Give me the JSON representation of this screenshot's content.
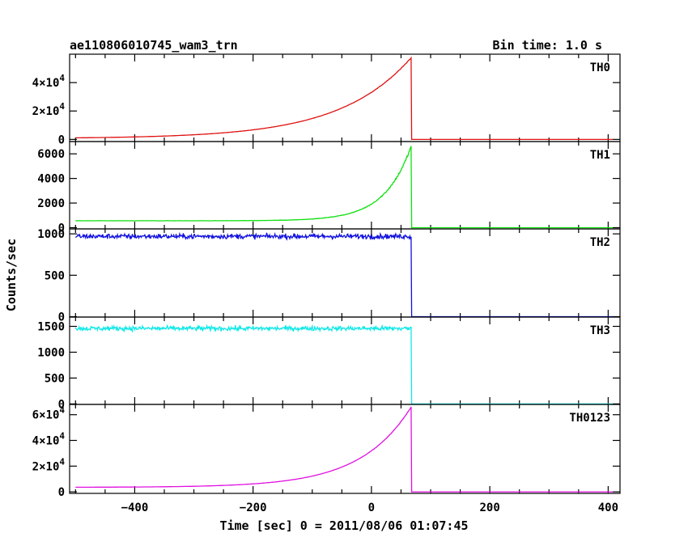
{
  "header": {
    "title": "ae110806010745_wam3_trn",
    "bin_time": "Bin time: 1.0 s"
  },
  "chart_data": {
    "type": "line",
    "xlabel": "Time [sec] 0 = 2011/08/06 01:07:45",
    "ylabel": "Counts/sec",
    "xlim": [
      -510,
      420
    ],
    "x_ticks": [
      -400,
      -200,
      0,
      200,
      400
    ],
    "x_tick_labels": [
      "−400",
      "−200",
      "0",
      "200",
      "400"
    ],
    "drop_time": 67,
    "panels": [
      {
        "name": "TH0",
        "color": "#e01010",
        "ylim": [
          -1500,
          60000
        ],
        "y_ticks": [
          0,
          20000,
          40000
        ],
        "y_tick_labels": [
          {
            "mant": "0",
            "exp": ""
          },
          {
            "mant": "2×10",
            "exp": "4"
          },
          {
            "mant": "4×10",
            "exp": "4"
          }
        ],
        "curve": {
          "base": 600,
          "peak": 57500,
          "decay": 120,
          "noise": 0.004
        },
        "post_level": 0
      },
      {
        "name": "TH1",
        "color": "#10e010",
        "ylim": [
          -100,
          7000
        ],
        "y_ticks": [
          0,
          2000,
          4000,
          6000
        ],
        "y_tick_labels": [
          {
            "mant": "0",
            "exp": ""
          },
          {
            "mant": "2000",
            "exp": ""
          },
          {
            "mant": "4000",
            "exp": ""
          },
          {
            "mant": "6000",
            "exp": ""
          }
        ],
        "curve": {
          "base": 560,
          "peak": 6600,
          "decay": 45,
          "noise": 0.02
        },
        "post_level": 0
      },
      {
        "name": "TH2",
        "color": "#1010e0",
        "ylim": [
          -5,
          1060
        ],
        "y_ticks": [
          0,
          500,
          1000
        ],
        "y_tick_labels": [
          {
            "mant": "0",
            "exp": ""
          },
          {
            "mant": "500",
            "exp": ""
          },
          {
            "mant": "1000",
            "exp": ""
          }
        ],
        "curve": {
          "base": 970,
          "peak": 970,
          "decay": 1000,
          "noise": 0.03
        },
        "post_level": 0
      },
      {
        "name": "TH3",
        "color": "#10e8e8",
        "ylim": [
          -10,
          1680
        ],
        "y_ticks": [
          0,
          500,
          1000,
          1500
        ],
        "y_tick_labels": [
          {
            "mant": "0",
            "exp": ""
          },
          {
            "mant": "500",
            "exp": ""
          },
          {
            "mant": "1000",
            "exp": ""
          },
          {
            "mant": "1500",
            "exp": ""
          }
        ],
        "curve": {
          "base": 1460,
          "peak": 1460,
          "decay": 1000,
          "noise": 0.03
        },
        "post_level": 0
      },
      {
        "name": "TH0123",
        "color": "#e010e0",
        "ylim": [
          -1200,
          68000
        ],
        "y_ticks": [
          0,
          20000,
          40000,
          60000
        ],
        "y_tick_labels": [
          {
            "mant": "0",
            "exp": ""
          },
          {
            "mant": "2×10",
            "exp": "4"
          },
          {
            "mant": "4×10",
            "exp": "4"
          },
          {
            "mant": "6×10",
            "exp": "4"
          }
        ],
        "curve": {
          "base": 3500,
          "peak": 66000,
          "decay": 85,
          "noise": 0.004
        },
        "post_level": 0
      }
    ]
  }
}
